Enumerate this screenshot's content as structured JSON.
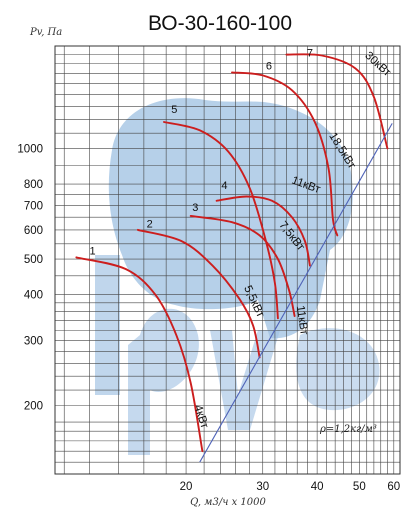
{
  "chart_data": {
    "type": "line",
    "title": "ВО-30-160-100",
    "ylabel": "Pv, Па",
    "xlabel": "Q, м3/ч x 1000",
    "scale": "log-log",
    "grid": true,
    "colors": {
      "curve": "#cc1e1e",
      "density_line": "#4f63b8",
      "grid": "#444444",
      "watermark": "#9ec0e2"
    },
    "xlim": [
      10,
      62
    ],
    "ylim": [
      130,
      1900
    ],
    "x_ticks": [
      20,
      30,
      40,
      50,
      60
    ],
    "y_ticks": [
      200,
      300,
      400,
      500,
      600,
      700,
      800,
      1000
    ],
    "x_grid": [
      10.5,
      12,
      14,
      16,
      18,
      20,
      22,
      24,
      26,
      28,
      30,
      32,
      34,
      36,
      38,
      40,
      42,
      44,
      46,
      48,
      50,
      52,
      54,
      56,
      58,
      60
    ],
    "y_grid": [
      140,
      150,
      160,
      170,
      180,
      200,
      220,
      240,
      260,
      280,
      300,
      320,
      340,
      360,
      380,
      400,
      450,
      500,
      550,
      600,
      650,
      700,
      750,
      800,
      900,
      1000,
      1100,
      1200,
      1300,
      1400,
      1500,
      1600,
      1700,
      1800
    ],
    "series": [
      {
        "name": "1",
        "points": [
          [
            11.2,
            505
          ],
          [
            14.5,
            470
          ],
          [
            17,
            400
          ],
          [
            19,
            310
          ],
          [
            20.5,
            230
          ],
          [
            21.8,
            150
          ]
        ]
      },
      {
        "name": "2",
        "points": [
          [
            15.5,
            600
          ],
          [
            19.5,
            560
          ],
          [
            23,
            480
          ],
          [
            26.5,
            390
          ],
          [
            28.5,
            330
          ],
          [
            29.5,
            270
          ]
        ]
      },
      {
        "name": "3",
        "points": [
          [
            20.5,
            655
          ],
          [
            25.5,
            630
          ],
          [
            29.5,
            580
          ],
          [
            32.5,
            500
          ],
          [
            34.5,
            410
          ],
          [
            35.5,
            350
          ]
        ]
      },
      {
        "name": "4",
        "points": [
          [
            23.5,
            720
          ],
          [
            27.5,
            740
          ],
          [
            31.5,
            720
          ],
          [
            35,
            650
          ],
          [
            37.5,
            560
          ],
          [
            38.5,
            480
          ]
        ]
      },
      {
        "name": "5",
        "points": [
          [
            17.8,
            1180
          ],
          [
            21.5,
            1120
          ],
          [
            25,
            980
          ],
          [
            28,
            780
          ],
          [
            30.5,
            560
          ],
          [
            32,
            430
          ],
          [
            32.5,
            345
          ]
        ]
      },
      {
        "name": "6",
        "points": [
          [
            25.5,
            1610
          ],
          [
            30,
            1580
          ],
          [
            35,
            1440
          ],
          [
            39.5,
            1180
          ],
          [
            42.5,
            880
          ],
          [
            43.5,
            640
          ],
          [
            44.5,
            580
          ]
        ]
      },
      {
        "name": "7",
        "points": [
          [
            34,
            1800
          ],
          [
            41,
            1790
          ],
          [
            49,
            1650
          ],
          [
            54,
            1380
          ],
          [
            58,
            1000
          ]
        ]
      }
    ],
    "density_line": {
      "label": "ρ=1,2кг/м³",
      "points": [
        [
          21.5,
          140
        ],
        [
          59.5,
          1170
        ]
      ]
    },
    "annotations": [
      {
        "text": "1",
        "at": [
          12.2,
          515
        ]
      },
      {
        "text": "2",
        "at": [
          16.5,
          610
        ]
      },
      {
        "text": "3",
        "at": [
          21,
          675
        ]
      },
      {
        "text": "4",
        "at": [
          24.5,
          775
        ]
      },
      {
        "text": "5",
        "at": [
          18.8,
          1250
        ]
      },
      {
        "text": "6",
        "at": [
          31,
          1640
        ]
      },
      {
        "text": "7",
        "at": [
          38.5,
          1780
        ]
      },
      {
        "text": "4кВт",
        "at": [
          21.3,
          185
        ],
        "rotate": 72
      },
      {
        "text": "5,5кВт",
        "at": [
          28.2,
          380
        ],
        "rotate": 65
      },
      {
        "text": "7,5кВт",
        "at": [
          34.5,
          570
        ],
        "rotate": 52
      },
      {
        "text": "11кВт",
        "at": [
          37.5,
          780
        ],
        "rotate": 20
      },
      {
        "text": "11кВт",
        "at": [
          36.3,
          340
        ],
        "rotate": 82
      },
      {
        "text": "18,5кВт",
        "at": [
          45,
          975
        ],
        "rotate": 58
      },
      {
        "text": "30кВт",
        "at": [
          54.5,
          1670
        ],
        "rotate": 42
      }
    ]
  }
}
